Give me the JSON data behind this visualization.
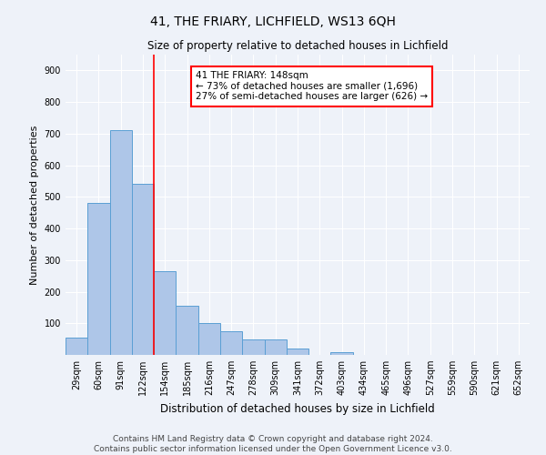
{
  "title": "41, THE FRIARY, LICHFIELD, WS13 6QH",
  "subtitle": "Size of property relative to detached houses in Lichfield",
  "xlabel": "Distribution of detached houses by size in Lichfield",
  "ylabel": "Number of detached properties",
  "bar_color": "#aec6e8",
  "bar_edge_color": "#5a9fd4",
  "categories": [
    "29sqm",
    "60sqm",
    "91sqm",
    "122sqm",
    "154sqm",
    "185sqm",
    "216sqm",
    "247sqm",
    "278sqm",
    "309sqm",
    "341sqm",
    "372sqm",
    "403sqm",
    "434sqm",
    "465sqm",
    "496sqm",
    "527sqm",
    "559sqm",
    "590sqm",
    "621sqm",
    "652sqm"
  ],
  "values": [
    55,
    480,
    710,
    540,
    265,
    155,
    100,
    75,
    50,
    50,
    20,
    0,
    10,
    0,
    0,
    0,
    0,
    0,
    0,
    0,
    0
  ],
  "vline_x": 3.5,
  "annotation_line1": "41 THE FRIARY: 148sqm",
  "annotation_line2": "← 73% of detached houses are smaller (1,696)",
  "annotation_line3": "27% of semi-detached houses are larger (626) →",
  "annotation_box_color": "white",
  "annotation_box_edge": "red",
  "vline_color": "red",
  "ylim": [
    0,
    950
  ],
  "yticks": [
    0,
    100,
    200,
    300,
    400,
    500,
    600,
    700,
    800,
    900
  ],
  "footer_line1": "Contains HM Land Registry data © Crown copyright and database right 2024.",
  "footer_line2": "Contains public sector information licensed under the Open Government Licence v3.0.",
  "background_color": "#eef2f9",
  "grid_color": "white",
  "title_fontsize": 10,
  "subtitle_fontsize": 8.5,
  "tick_fontsize": 7,
  "ylabel_fontsize": 8,
  "xlabel_fontsize": 8.5,
  "annotation_fontsize": 7.5,
  "footer_fontsize": 6.5
}
